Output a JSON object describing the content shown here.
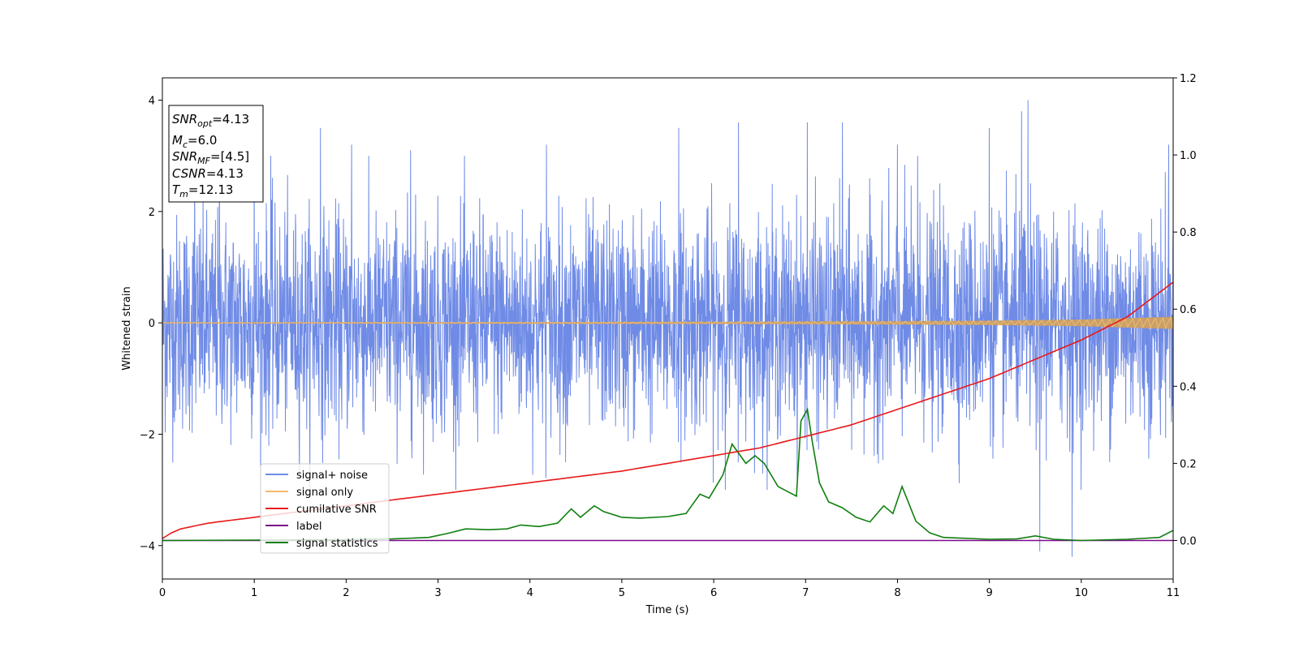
{
  "chart_data": {
    "type": "line",
    "xlabel": "Time (s)",
    "ylabel": "Whitened strain",
    "xlim": [
      0,
      11
    ],
    "ylim_left": [
      -4.6,
      4.4
    ],
    "ylim_right": [
      -0.1,
      1.2
    ],
    "x_ticks": [
      "0",
      "1",
      "2",
      "3",
      "4",
      "5",
      "6",
      "7",
      "8",
      "9",
      "10",
      "11"
    ],
    "y_ticks_left": [
      "4",
      "2",
      "0",
      "−2",
      "−4"
    ],
    "y_ticks_right": [
      "1.2",
      "1.0",
      "0.8",
      "0.6",
      "0.4",
      "0.2",
      "0.0"
    ],
    "grid": false,
    "legend": {
      "placement": "lower-left",
      "entries": [
        "signal+ noise",
        "signal only",
        "cumilative SNR",
        "label",
        "signal statistics"
      ]
    },
    "annotation": {
      "placement": "top-left",
      "lines": [
        {
          "main": "SNR",
          "sub": "opt",
          "value": "=4.13"
        },
        {
          "main": "M",
          "sub": "c",
          "value": "=6.0"
        },
        {
          "main": "SNR",
          "sub": "MF",
          "value": "=[4.5]"
        },
        {
          "main": "CSNR",
          "sub": "",
          "value": "=4.13"
        },
        {
          "main": "T",
          "sub": "m",
          "value": "=12.13"
        }
      ]
    },
    "series": [
      {
        "name": "signal+ noise",
        "axis": "left",
        "color": "#6f8be6",
        "style": "dense noise",
        "typical_range": [
          -2.2,
          2.2
        ],
        "peaks_x": [
          0.35,
          0.62,
          1.0,
          1.18,
          1.72,
          2.06,
          2.7,
          4.18,
          5.62,
          6.27,
          7.02,
          7.4,
          8.0,
          8.22,
          9.0,
          9.35,
          9.42,
          9.55,
          9.9,
          10.95
        ],
        "peaks_y": [
          3.3,
          3.2,
          3.1,
          3.0,
          3.5,
          3.2,
          3.1,
          3.2,
          3.5,
          3.6,
          3.6,
          3.6,
          3.2,
          3.0,
          3.5,
          3.8,
          4.0,
          -4.1,
          -4.2,
          3.2
        ]
      },
      {
        "name": "signal only",
        "axis": "left",
        "color": "#f5b96b",
        "x": [
          0,
          2,
          4,
          6,
          8,
          9,
          10,
          10.5,
          11
        ],
        "amplitude": [
          0.01,
          0.012,
          0.015,
          0.02,
          0.03,
          0.04,
          0.06,
          0.085,
          0.11
        ]
      },
      {
        "name": "cumilative SNR",
        "axis": "right",
        "color": "#e8191a",
        "x": [
          0,
          0.1,
          0.2,
          0.5,
          1,
          2,
          3,
          4,
          5,
          6,
          6.5,
          7,
          7.5,
          8,
          8.5,
          9,
          9.5,
          10,
          10.5,
          11
        ],
        "y": [
          0.005,
          0.02,
          0.03,
          0.045,
          0.06,
          0.09,
          0.12,
          0.15,
          0.18,
          0.22,
          0.24,
          0.27,
          0.3,
          0.34,
          0.38,
          0.42,
          0.47,
          0.52,
          0.58,
          0.67
        ]
      },
      {
        "name": "label",
        "axis": "right",
        "color": "#7b0a8a",
        "x": [
          0,
          11
        ],
        "y": [
          0,
          0
        ]
      },
      {
        "name": "signal statistics",
        "axis": "right",
        "color": "#0f7f0f",
        "x": [
          0,
          1,
          2,
          2.5,
          2.9,
          3.1,
          3.3,
          3.55,
          3.75,
          3.9,
          4.1,
          4.3,
          4.45,
          4.55,
          4.7,
          4.8,
          5.0,
          5.2,
          5.5,
          5.7,
          5.85,
          5.95,
          6.1,
          6.2,
          6.35,
          6.45,
          6.55,
          6.7,
          6.9,
          6.95,
          7.02,
          7.07,
          7.15,
          7.25,
          7.4,
          7.55,
          7.7,
          7.85,
          7.95,
          8.05,
          8.2,
          8.35,
          8.5,
          9.0,
          9.3,
          9.5,
          9.7,
          10.0,
          10.5,
          10.85,
          11.0
        ],
        "y": [
          0.0,
          0.001,
          0.002,
          0.004,
          0.008,
          0.018,
          0.03,
          0.028,
          0.03,
          0.04,
          0.036,
          0.045,
          0.082,
          0.06,
          0.09,
          0.075,
          0.06,
          0.058,
          0.062,
          0.07,
          0.12,
          0.11,
          0.17,
          0.25,
          0.2,
          0.22,
          0.2,
          0.14,
          0.115,
          0.31,
          0.34,
          0.26,
          0.15,
          0.1,
          0.085,
          0.06,
          0.048,
          0.09,
          0.07,
          0.14,
          0.05,
          0.02,
          0.008,
          0.003,
          0.004,
          0.012,
          0.003,
          0.0,
          0.003,
          0.008,
          0.026
        ]
      }
    ]
  }
}
